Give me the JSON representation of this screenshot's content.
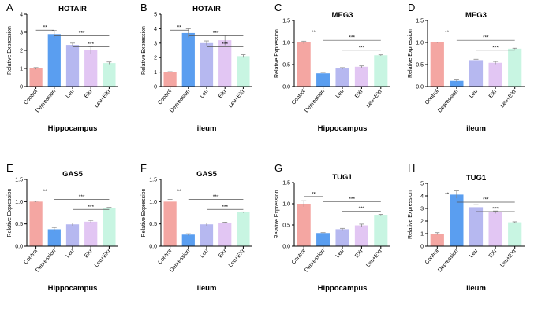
{
  "figure": {
    "colors": {
      "Control": "#f4a6a2",
      "Depression": "#5a9ef0",
      "Leu": "#b6b8f0",
      "EXr": "#e2c6f3",
      "Leu+EXr": "#c8f5e2",
      "error": "#888888"
    }
  },
  "chart_data": [
    {
      "type": "bar",
      "panel_letter": "A",
      "title": "HOTAIR",
      "xlabel": "Hippocampus",
      "ylabel": "Relative Expression",
      "ylim": [
        0,
        4
      ],
      "yticks": [
        "0",
        "1",
        "2",
        "3",
        "4"
      ],
      "ytick_values": [
        0,
        1,
        2,
        3,
        4
      ],
      "categories": [
        "Control",
        "Depression",
        "Leu",
        "EXr",
        "Leu+EXr"
      ],
      "values": [
        1.0,
        2.9,
        2.3,
        2.0,
        1.3
      ],
      "errors": [
        0.05,
        0.2,
        0.1,
        0.2,
        0.06
      ],
      "significance": [
        {
          "from": 0,
          "to": 1,
          "label": "**"
        },
        {
          "from": 1,
          "to": 4,
          "label": "***"
        },
        {
          "from": 2,
          "to": 4,
          "label": "***"
        }
      ]
    },
    {
      "type": "bar",
      "panel_letter": "B",
      "title": "HOTAIR",
      "xlabel": "ileum",
      "ylabel": "Relative Expression",
      "ylim": [
        0,
        5
      ],
      "yticks": [
        "0",
        "1",
        "2",
        "3",
        "4",
        "5"
      ],
      "ytick_values": [
        0,
        1,
        2,
        3,
        4,
        5
      ],
      "categories": [
        "Control",
        "Depression",
        "Leu",
        "EXr",
        "Leu+EXr"
      ],
      "values": [
        1.0,
        3.7,
        3.0,
        3.2,
        2.1
      ],
      "errors": [
        0.03,
        0.3,
        0.15,
        0.35,
        0.1
      ],
      "significance": [
        {
          "from": 0,
          "to": 1,
          "label": "**"
        },
        {
          "from": 1,
          "to": 4,
          "label": "***"
        },
        {
          "from": 2,
          "to": 4,
          "label": "***"
        }
      ]
    },
    {
      "type": "bar",
      "panel_letter": "C",
      "title": "MEG3",
      "xlabel": "Hippocampus",
      "ylabel": "Relative Expression",
      "ylim": [
        0,
        1.5
      ],
      "yticks": [
        "0.0",
        "0.5",
        "1.0",
        "1.5"
      ],
      "ytick_values": [
        0,
        0.5,
        1.0,
        1.5
      ],
      "categories": [
        "Control",
        "Depression",
        "Leu",
        "EXr",
        "Leu+EXr"
      ],
      "values": [
        1.0,
        0.3,
        0.41,
        0.45,
        0.71
      ],
      "errors": [
        0.03,
        0.02,
        0.02,
        0.02,
        0.01
      ],
      "significance": [
        {
          "from": 0,
          "to": 1,
          "label": "**"
        },
        {
          "from": 1,
          "to": 4,
          "label": "***"
        },
        {
          "from": 2,
          "to": 4,
          "label": "***"
        }
      ]
    },
    {
      "type": "bar",
      "panel_letter": "D",
      "title": "MEG3",
      "xlabel": "ileum",
      "ylabel": "Relative Expression",
      "ylim": [
        0,
        1.5
      ],
      "yticks": [
        "0.0",
        "0.5",
        "1.0",
        "1.5"
      ],
      "ytick_values": [
        0,
        0.5,
        1.0,
        1.5
      ],
      "categories": [
        "Control",
        "Depression",
        "Leu",
        "EXr",
        "Leu+EXr"
      ],
      "values": [
        1.0,
        0.13,
        0.6,
        0.54,
        0.86
      ],
      "errors": [
        0.01,
        0.02,
        0.02,
        0.03,
        0.01
      ],
      "significance": [
        {
          "from": 0,
          "to": 1,
          "label": "**"
        },
        {
          "from": 1,
          "to": 4,
          "label": "***"
        },
        {
          "from": 2,
          "to": 4,
          "label": "***"
        }
      ]
    },
    {
      "type": "bar",
      "panel_letter": "E",
      "title": "GAS5",
      "xlabel": "Hippocampus",
      "ylabel": "Relative Expression",
      "ylim": [
        0,
        1.5
      ],
      "yticks": [
        "0.0",
        "0.5",
        "1.0",
        "1.5"
      ],
      "ytick_values": [
        0,
        0.5,
        1.0,
        1.5
      ],
      "categories": [
        "Control",
        "Depression",
        "Leu",
        "EXr",
        "Leu+EXr"
      ],
      "values": [
        1.0,
        0.38,
        0.49,
        0.55,
        0.86
      ],
      "errors": [
        0.01,
        0.04,
        0.03,
        0.03,
        0.01
      ],
      "significance": [
        {
          "from": 0,
          "to": 1,
          "label": "**"
        },
        {
          "from": 1,
          "to": 4,
          "label": "***"
        },
        {
          "from": 2,
          "to": 4,
          "label": "***"
        }
      ]
    },
    {
      "type": "bar",
      "panel_letter": "F",
      "title": "GAS5",
      "xlabel": "ileum",
      "ylabel": "Relative Expression",
      "ylim": [
        0,
        1.5
      ],
      "yticks": [
        "0.0",
        "0.5",
        "1.0",
        "1.5"
      ],
      "ytick_values": [
        0,
        0.5,
        1.0,
        1.5
      ],
      "categories": [
        "Control",
        "Depression",
        "Leu",
        "EXr",
        "Leu+EXr"
      ],
      "values": [
        1.0,
        0.26,
        0.49,
        0.53,
        0.76
      ],
      "errors": [
        0.05,
        0.02,
        0.03,
        0.01,
        0.01
      ],
      "significance": [
        {
          "from": 0,
          "to": 1,
          "label": "**"
        },
        {
          "from": 1,
          "to": 4,
          "label": "***"
        },
        {
          "from": 2,
          "to": 4,
          "label": "***"
        }
      ]
    },
    {
      "type": "bar",
      "panel_letter": "G",
      "title": "TUG1",
      "xlabel": "Hippocampus",
      "ylabel": "Relative Expression",
      "ylim": [
        0,
        1.5
      ],
      "yticks": [
        "0.0",
        "0.5",
        "1.0",
        "1.5"
      ],
      "ytick_values": [
        0,
        0.5,
        1.0,
        1.5
      ],
      "categories": [
        "Control",
        "Depression",
        "Leu",
        "EXr",
        "Leu+EXr"
      ],
      "values": [
        1.0,
        0.31,
        0.4,
        0.49,
        0.74
      ],
      "errors": [
        0.07,
        0.01,
        0.02,
        0.03,
        0.01
      ],
      "significance": [
        {
          "from": 0,
          "to": 1,
          "label": "**"
        },
        {
          "from": 1,
          "to": 4,
          "label": "***"
        },
        {
          "from": 2,
          "to": 4,
          "label": "***"
        }
      ]
    },
    {
      "type": "bar",
      "panel_letter": "H",
      "title": "TUG1",
      "xlabel": "ileum",
      "ylabel": "Relative Expression",
      "ylim": [
        0,
        5
      ],
      "yticks": [
        "0",
        "1",
        "2",
        "3",
        "4",
        "5"
      ],
      "ytick_values": [
        0,
        1,
        2,
        3,
        4,
        5
      ],
      "categories": [
        "Control",
        "Depression",
        "Leu",
        "EXr",
        "Leu+EXr"
      ],
      "values": [
        1.0,
        4.1,
        3.1,
        2.7,
        1.9
      ],
      "errors": [
        0.08,
        0.3,
        0.2,
        0.1,
        0.04
      ],
      "significance": [
        {
          "from": 0,
          "to": 1,
          "label": "**"
        },
        {
          "from": 1,
          "to": 4,
          "label": "***"
        },
        {
          "from": 2,
          "to": 4,
          "label": "***"
        }
      ]
    }
  ]
}
